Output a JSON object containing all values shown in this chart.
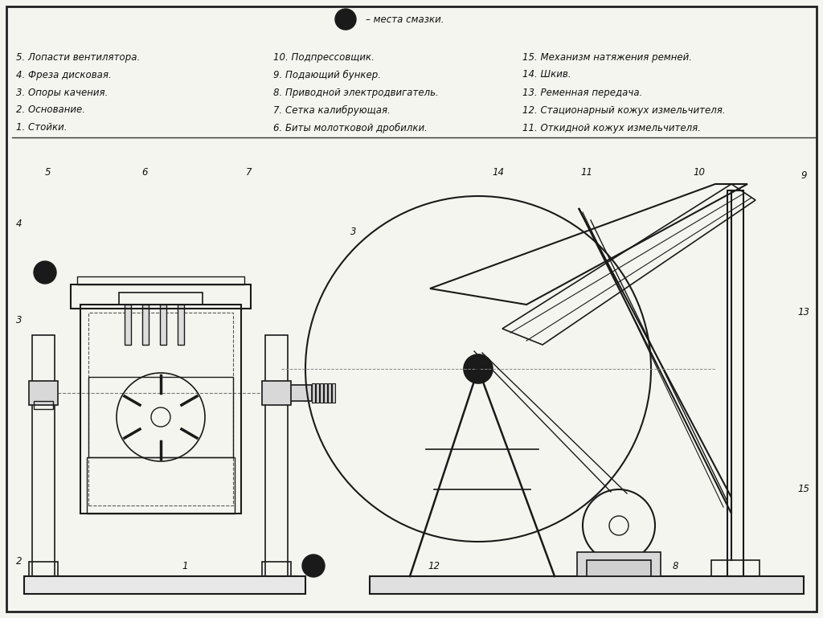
{
  "bg_color": "#f5f5f0",
  "border_color": "#1a1a1a",
  "line_color": "#1a1a1a",
  "dashed_color": "#555555",
  "title_font_size": 9,
  "label_font_size": 8.5,
  "legend_items": [
    "1. Стойки.",
    "2. Основание.",
    "3. Опоры качения.",
    "4. Фреза дисковая.",
    "5. Лопасти вентилятора.",
    "6. Биты молотковой дробилки.",
    "7. Сетка калибрующая.",
    "8. Приводной электродвигатель.",
    "9. Подающий бункер.",
    "10. Подпрессовщик.",
    "11. Откидной кожух измельчителя.",
    "12. Стационарный кожух измельчителя.",
    "13. Ременная передача.",
    "14. Шкив.",
    "15. Механизм натяжения ремней."
  ],
  "sm_label": "– места смазки."
}
